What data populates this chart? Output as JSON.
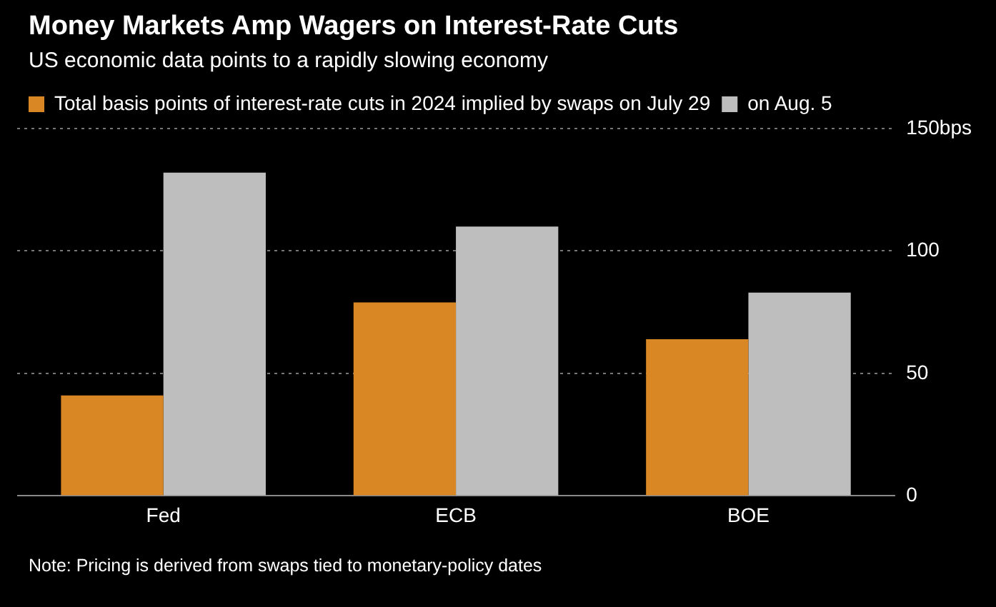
{
  "chart_data": {
    "type": "bar",
    "title": "Money Markets Amp Wagers on Interest-Rate Cuts",
    "subtitle": "US economic data points to a rapidly slowing economy",
    "categories": [
      "Fed",
      "ECB",
      "BOE"
    ],
    "series": [
      {
        "name": "Total basis points of interest-rate cuts in 2024 implied by swaps on July 29",
        "color": "#d98724",
        "values": [
          41,
          79,
          64
        ]
      },
      {
        "name": "on Aug. 5",
        "color": "#bebebe",
        "values": [
          132,
          110,
          83
        ]
      }
    ],
    "ylim": [
      0,
      150
    ],
    "yticks": [
      0,
      50,
      100,
      {
        "value": 150,
        "label": "150bps"
      }
    ],
    "grid": "y",
    "legend": "top left",
    "annotations": [
      "Note: Pricing is derived from swaps tied to monetary-policy dates"
    ]
  }
}
